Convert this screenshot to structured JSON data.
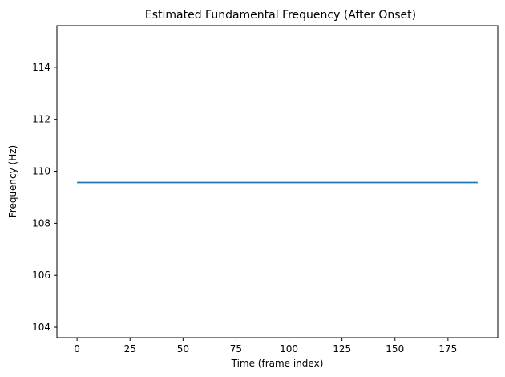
{
  "chart_data": {
    "type": "line",
    "title": "Estimated Fundamental Frequency (After Onset)",
    "xlabel": "Time (frame index)",
    "ylabel": "Frequency (Hz)",
    "xlim": [
      -9.5,
      198.5
    ],
    "ylim": [
      103.6,
      115.6
    ],
    "xticks": [
      0,
      25,
      50,
      75,
      100,
      125,
      150,
      175
    ],
    "yticks": [
      104,
      106,
      108,
      110,
      112,
      114
    ],
    "grid": false,
    "series": [
      {
        "color": "#1f77b4",
        "x": [
          0,
          189
        ],
        "y": [
          109.57,
          109.57
        ]
      }
    ]
  }
}
